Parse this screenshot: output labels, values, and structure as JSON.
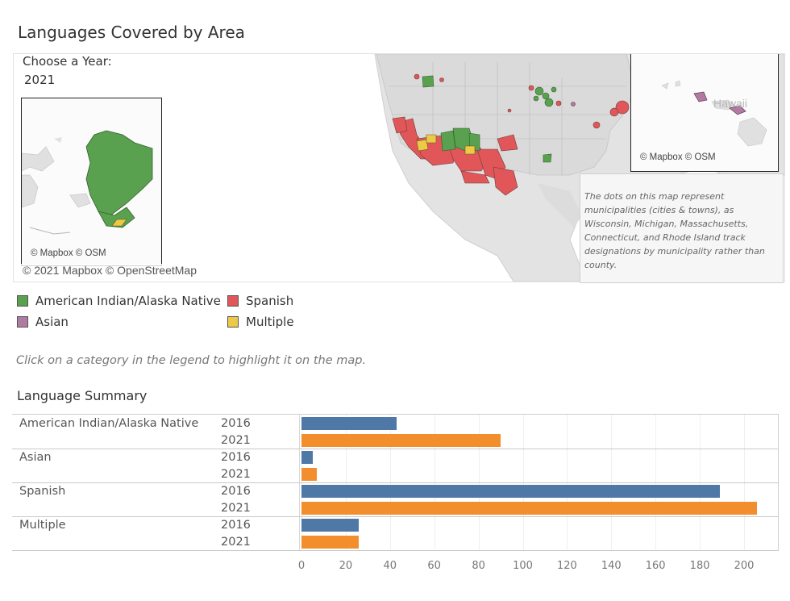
{
  "title": "Languages Covered by Area",
  "filter": {
    "label": "Choose a Year:",
    "value": "2021"
  },
  "map": {
    "attribution": "© 2021 Mapbox © OpenStreetMap",
    "inset_attribution": "© Mapbox © OSM",
    "hawaii_label": "Hawaii",
    "tooltip": "The dots on this map represent municipalities (cities & towns), as Wisconsin, Michigan, Massachusetts, Connecticut, and Rhode Island track designations by municipality rather than county."
  },
  "legend": {
    "items": [
      {
        "label": "American Indian/Alaska Native",
        "color": "#59a14f"
      },
      {
        "label": "Spanish",
        "color": "#e15759"
      },
      {
        "label": "Asian",
        "color": "#b07aa1"
      },
      {
        "label": "Multiple",
        "color": "#edc948"
      }
    ]
  },
  "hint": "Click on a category in the legend to highlight it on the map.",
  "summary_title": "Language Summary",
  "colors": {
    "y2016": "#4e79a7",
    "y2021": "#f28e2b"
  },
  "chart_data": {
    "type": "bar",
    "orientation": "horizontal",
    "categories": [
      "American Indian/Alaska Native",
      "Asian",
      "Spanish",
      "Multiple"
    ],
    "series": [
      {
        "name": "2016",
        "values": [
          43,
          5,
          189,
          26
        ]
      },
      {
        "name": "2021",
        "values": [
          90,
          7,
          206,
          26
        ]
      }
    ],
    "xticks": [
      0,
      20,
      40,
      60,
      80,
      100,
      120,
      140,
      160,
      180,
      200
    ],
    "xlim": [
      0,
      210
    ],
    "grid": true
  }
}
